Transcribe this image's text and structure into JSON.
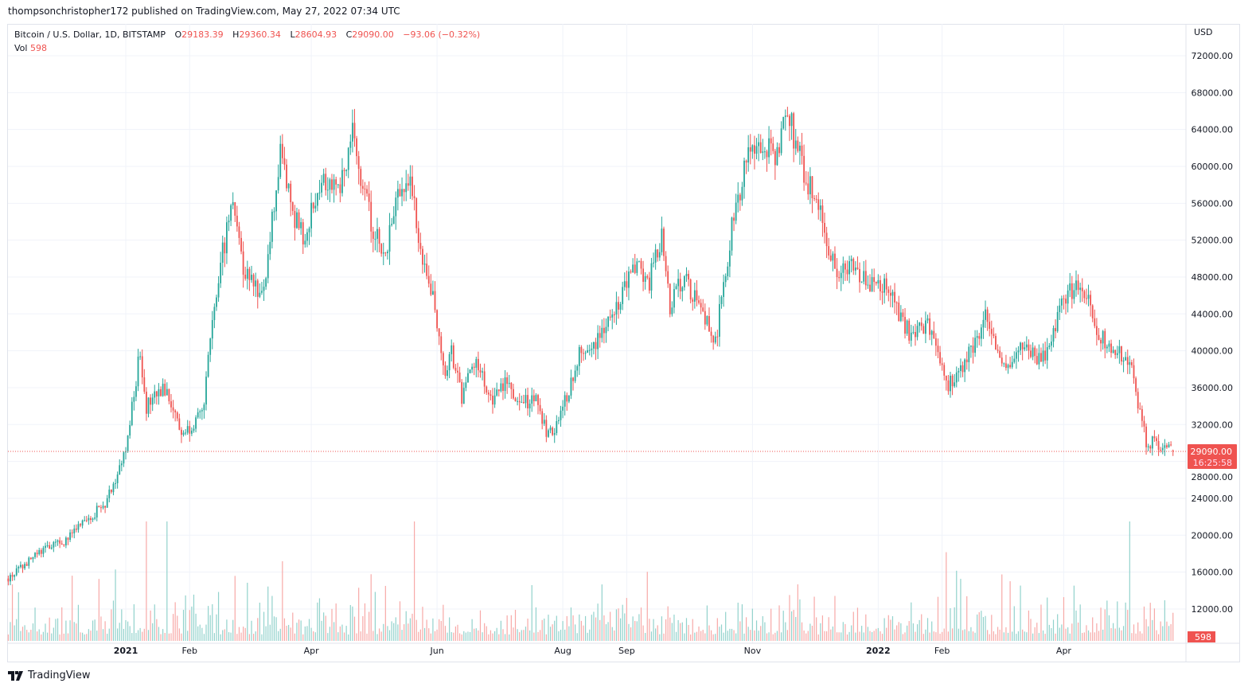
{
  "publisher_line": "thompsonchristopher172 published on TradingView.com, May 27, 2022 07:34 UTC",
  "legend": {
    "symbol": "Bitcoin / U.S. Dollar, 1D, BITSTAMP",
    "o_label": "O",
    "open": "29183.39",
    "h_label": "H",
    "high": "29360.34",
    "l_label": "L",
    "low": "28604.93",
    "c_label": "C",
    "close": "29090.00",
    "change": "−93.06 (−0.32%)",
    "vol_label": "Vol",
    "vol": "598"
  },
  "currency": "USD",
  "last_price_tag": {
    "price": "29090.00",
    "countdown": "16:25:58"
  },
  "volume_tag": "598",
  "brand": "TradingView",
  "colors": {
    "up": "#26a69a",
    "down": "#ef5350",
    "vol_up": "#92d2cc",
    "vol_down": "#f7a9a7",
    "grid": "#f0f3fa"
  },
  "chart_data": {
    "type": "candlestick",
    "title": "Bitcoin / U.S. Dollar, 1D, BITSTAMP",
    "ylim": [
      9000,
      74000
    ],
    "yticks": [
      "72000.00",
      "68000.00",
      "64000.00",
      "60000.00",
      "56000.00",
      "52000.00",
      "48000.00",
      "44000.00",
      "40000.00",
      "36000.00",
      "32000.00",
      "28000.00",
      "24000.00",
      "20000.00",
      "16000.00",
      "12000.00"
    ],
    "ytick_values": [
      72000,
      68000,
      64000,
      60000,
      56000,
      52000,
      48000,
      44000,
      40000,
      36000,
      32000,
      28000,
      24000,
      20000,
      16000,
      12000
    ],
    "xticks": [
      {
        "label": "2021",
        "day": 0
      },
      {
        "label": "Feb",
        "day": 31
      },
      {
        "label": "Apr",
        "day": 90
      },
      {
        "label": "Jun",
        "day": 151
      },
      {
        "label": "Aug",
        "day": 212
      },
      {
        "label": "Sep",
        "day": 243
      },
      {
        "label": "Nov",
        "day": 304
      },
      {
        "label": "2022",
        "day": 365
      },
      {
        "label": "Feb",
        "day": 396
      },
      {
        "label": "Apr",
        "day": 455
      }
    ],
    "x_range_days": [
      -57,
      508
    ],
    "last_close": 29090,
    "keypoints_note": "day offset from 2021-01-01, approximate close",
    "keypoints": [
      [
        -57,
        15300
      ],
      [
        -40,
        18500
      ],
      [
        -30,
        19300
      ],
      [
        -10,
        23500
      ],
      [
        0,
        29000
      ],
      [
        7,
        40000
      ],
      [
        10,
        34000
      ],
      [
        20,
        36000
      ],
      [
        27,
        31000
      ],
      [
        37,
        33000
      ],
      [
        45,
        48000
      ],
      [
        52,
        57000
      ],
      [
        57,
        49000
      ],
      [
        67,
        46000
      ],
      [
        72,
        56000
      ],
      [
        75,
        61000
      ],
      [
        80,
        56000
      ],
      [
        86,
        52000
      ],
      [
        95,
        59000
      ],
      [
        104,
        58000
      ],
      [
        110,
        63500
      ],
      [
        119,
        54000
      ],
      [
        126,
        50000
      ],
      [
        131,
        57000
      ],
      [
        139,
        58000
      ],
      [
        143,
        50000
      ],
      [
        150,
        45000
      ],
      [
        155,
        37000
      ],
      [
        158,
        40000
      ],
      [
        163,
        35000
      ],
      [
        170,
        39000
      ],
      [
        178,
        34000
      ],
      [
        184,
        37000
      ],
      [
        190,
        34000
      ],
      [
        199,
        35000
      ],
      [
        204,
        31000
      ],
      [
        210,
        32000
      ],
      [
        220,
        40000
      ],
      [
        225,
        40000
      ],
      [
        240,
        46000
      ],
      [
        249,
        50000
      ],
      [
        253,
        47000
      ],
      [
        260,
        52000
      ],
      [
        264,
        45000
      ],
      [
        271,
        48000
      ],
      [
        282,
        43000
      ],
      [
        286,
        41000
      ],
      [
        295,
        55000
      ],
      [
        302,
        61000
      ],
      [
        310,
        62000
      ],
      [
        316,
        61000
      ],
      [
        321,
        66000
      ],
      [
        329,
        59000
      ],
      [
        335,
        57000
      ],
      [
        342,
        50000
      ],
      [
        346,
        48000
      ],
      [
        353,
        49000
      ],
      [
        360,
        47000
      ],
      [
        368,
        47000
      ],
      [
        380,
        42000
      ],
      [
        389,
        43000
      ],
      [
        398,
        36000
      ],
      [
        405,
        38000
      ],
      [
        418,
        44000
      ],
      [
        425,
        38000
      ],
      [
        433,
        40000
      ],
      [
        446,
        39000
      ],
      [
        452,
        44000
      ],
      [
        460,
        47000
      ],
      [
        466,
        46000
      ],
      [
        472,
        42000
      ],
      [
        480,
        40000
      ],
      [
        488,
        38000
      ],
      [
        495,
        30000
      ],
      [
        500,
        30000
      ],
      [
        508,
        29090
      ]
    ]
  }
}
